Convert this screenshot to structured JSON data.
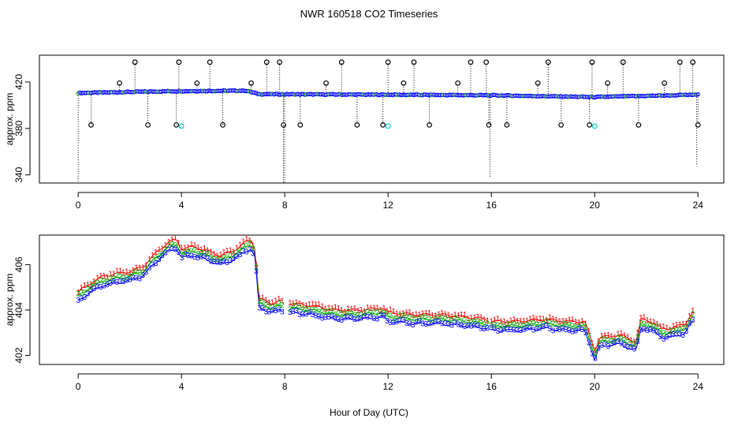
{
  "chart_data": [
    {
      "type": "scatter",
      "title": "NWR  160518  CO2 Timeseries",
      "xlabel": "",
      "ylabel": "approx. ppm",
      "xlim": [
        -1.5,
        25
      ],
      "ylim": [
        333,
        443
      ],
      "xticks": [
        0,
        4,
        8,
        12,
        16,
        20,
        24
      ],
      "yticks": [
        340,
        380,
        420
      ],
      "ytick_labels": [
        "340",
        "380",
        "420"
      ],
      "grid": false,
      "colors": {
        "black": "#000000",
        "blue": "#0000ff",
        "cyan": "#00cccc",
        "green": "#00aa00",
        "red": "#ff0000"
      },
      "baseline": 410,
      "base_blue": [
        [
          0,
          410.5
        ],
        [
          3.5,
          412
        ],
        [
          6.5,
          412.5
        ],
        [
          7.0,
          409.5
        ],
        [
          12,
          409
        ],
        [
          16,
          408.5
        ],
        [
          20,
          407
        ],
        [
          24,
          409
        ]
      ],
      "outliers_high": [
        2.2,
        3.9,
        5.1,
        7.3,
        7.8,
        10.2,
        12.0,
        13.0,
        15.2,
        15.8,
        18.2,
        19.9,
        21.1,
        23.3,
        23.8
      ],
      "outliers_low": [
        0.5,
        2.7,
        3.8,
        5.6,
        7.95,
        8.6,
        10.8,
        11.8,
        13.6,
        15.9,
        16.6,
        18.7,
        19.8,
        21.7,
        24.0
      ],
      "outliers_mid": [
        1.6,
        4.6,
        6.7,
        9.6,
        12.6,
        14.7,
        17.8,
        20.5,
        22.7
      ],
      "cyan_points": [
        4.0,
        12.0,
        20.0
      ],
      "drop_lines": [
        {
          "x": 0.0,
          "y0": 410.5,
          "y1": 333
        },
        {
          "x": 7.95,
          "y0": 409.5,
          "y1": 333
        },
        {
          "x": 8.0,
          "y0": 409.5,
          "y1": 333
        },
        {
          "x": 15.95,
          "y0": 408.5,
          "y1": 338
        },
        {
          "x": 23.95,
          "y0": 409,
          "y1": 349
        }
      ]
    },
    {
      "type": "scatter",
      "title": "",
      "xlabel": "Hour of Day (UTC)",
      "ylabel": "approx. ppm",
      "xlim": [
        -1.5,
        25
      ],
      "ylim": [
        401.6,
        407.3
      ],
      "xticks": [
        0,
        4,
        8,
        12,
        16,
        20,
        24
      ],
      "yticks": [
        402,
        404,
        406
      ],
      "ytick_labels": [
        "402",
        "404",
        "406"
      ],
      "grid": false,
      "series": [
        {
          "marker": "1",
          "color": "#ff0000",
          "offset": 0.35,
          "gaps": []
        },
        {
          "marker": "2",
          "color": "#00aa00",
          "offset": 0.15,
          "gaps": []
        },
        {
          "marker": "3",
          "color": "#0000ff",
          "offset": -0.05,
          "gaps": []
        }
      ],
      "profile": [
        [
          0.0,
          404.5
        ],
        [
          0.5,
          404.9
        ],
        [
          1.0,
          405.2
        ],
        [
          1.5,
          405.3
        ],
        [
          2.0,
          405.4
        ],
        [
          2.5,
          405.6
        ],
        [
          3.0,
          406.2
        ],
        [
          3.5,
          406.7
        ],
        [
          3.8,
          406.8
        ],
        [
          4.0,
          406.4
        ],
        [
          4.5,
          406.5
        ],
        [
          5.0,
          406.3
        ],
        [
          5.5,
          406.1
        ],
        [
          6.0,
          406.3
        ],
        [
          6.5,
          406.7
        ],
        [
          6.7,
          406.8
        ],
        [
          6.85,
          406.4
        ],
        [
          7.0,
          404.2
        ],
        [
          7.5,
          404.0
        ],
        [
          7.8,
          404.1
        ],
        [
          8.2,
          404.0
        ],
        [
          9.0,
          403.9
        ],
        [
          10.0,
          403.7
        ],
        [
          11.0,
          403.7
        ],
        [
          11.8,
          403.8
        ],
        [
          12.0,
          403.6
        ],
        [
          13.0,
          403.5
        ],
        [
          14.0,
          403.5
        ],
        [
          15.0,
          403.4
        ],
        [
          15.8,
          403.3
        ],
        [
          16.0,
          403.2
        ],
        [
          17.0,
          403.2
        ],
        [
          18.0,
          403.3
        ],
        [
          19.0,
          403.2
        ],
        [
          19.6,
          403.2
        ],
        [
          19.8,
          402.6
        ],
        [
          20.0,
          401.9
        ],
        [
          20.2,
          402.5
        ],
        [
          21.0,
          402.6
        ],
        [
          21.6,
          402.3
        ],
        [
          21.8,
          403.3
        ],
        [
          22.2,
          403.2
        ],
        [
          22.6,
          402.9
        ],
        [
          23.0,
          402.9
        ],
        [
          23.5,
          403.1
        ],
        [
          23.8,
          403.6
        ]
      ],
      "segments": [
        [
          0.0,
          7.9
        ],
        [
          8.2,
          15.85
        ],
        [
          16.0,
          23.8
        ]
      ]
    }
  ]
}
